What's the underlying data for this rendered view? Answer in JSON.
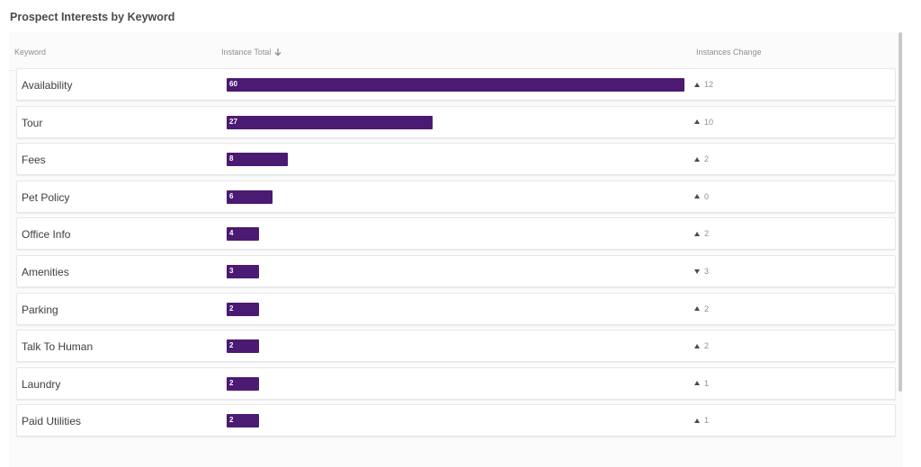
{
  "title": "Prospect Interests by Keyword",
  "columns": {
    "keyword": "Keyword",
    "instance_total": "Instance Total",
    "instances_change": "Instances Change"
  },
  "colors": {
    "bar": "#4b1a73",
    "arrow": "#4a4a52"
  },
  "sort_icon": "arrow-down-icon",
  "max_total": 60,
  "rows": [
    {
      "keyword": "Availability",
      "total": 60,
      "change": 12,
      "direction": "up"
    },
    {
      "keyword": "Tour",
      "total": 27,
      "change": 10,
      "direction": "up"
    },
    {
      "keyword": "Fees",
      "total": 8,
      "change": 2,
      "direction": "up"
    },
    {
      "keyword": "Pet Policy",
      "total": 6,
      "change": 0,
      "direction": "up"
    },
    {
      "keyword": "Office Info",
      "total": 4,
      "change": 2,
      "direction": "up"
    },
    {
      "keyword": "Amenities",
      "total": 3,
      "change": 3,
      "direction": "down"
    },
    {
      "keyword": "Parking",
      "total": 2,
      "change": 2,
      "direction": "up"
    },
    {
      "keyword": "Talk To Human",
      "total": 2,
      "change": 2,
      "direction": "up"
    },
    {
      "keyword": "Laundry",
      "total": 2,
      "change": 1,
      "direction": "up"
    },
    {
      "keyword": "Paid Utilities",
      "total": 2,
      "change": 1,
      "direction": "up"
    }
  ]
}
